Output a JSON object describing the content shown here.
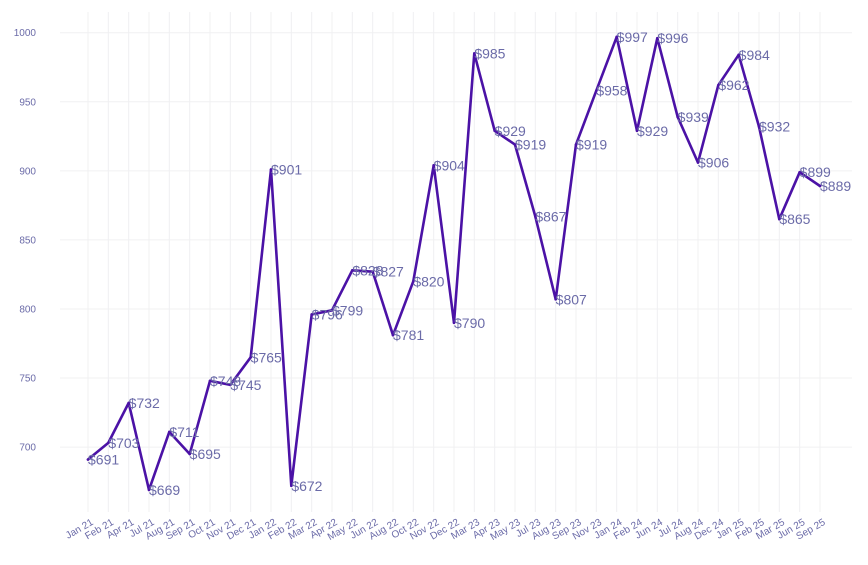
{
  "chart_data": {
    "type": "line",
    "title": "",
    "xlabel": "",
    "ylabel": "",
    "ylim": [
      653,
      1015
    ],
    "yticks": [
      700,
      750,
      800,
      850,
      900,
      950,
      1000
    ],
    "grid": true,
    "line_color": "#4b12a6",
    "label_prefix": "$",
    "categories": [
      "Jan 21",
      "Feb 21",
      "Apr 21",
      "Jul 21",
      "Aug 21",
      "Sep 21",
      "Oct 21",
      "Nov 21",
      "Dec 21",
      "Jan 22",
      "Feb 22",
      "Mar 22",
      "Apr 22",
      "May 22",
      "Jun 22",
      "Aug 22",
      "Oct 22",
      "Nov 22",
      "Dec 22",
      "Mar 23",
      "Apr 23",
      "May 23",
      "Jul 23",
      "Aug 23",
      "Sep 23",
      "Nov 23",
      "Jan 24",
      "Feb 24",
      "Jun 24",
      "Jul 24",
      "Aug 24",
      "Dec 24",
      "Jan 25",
      "Feb 25",
      "Mar 25",
      "Jun 25",
      "Sep 25"
    ],
    "series": [
      {
        "values": [
          691,
          703,
          732,
          669,
          711,
          695,
          748,
          745,
          765,
          901,
          672,
          796,
          799,
          828,
          827,
          781,
          820,
          904,
          790,
          985,
          929,
          919,
          867,
          807,
          919,
          958,
          997,
          929,
          996,
          939,
          906,
          962,
          984,
          932,
          865,
          899,
          889
        ],
        "labels": [
          "$691",
          "$703",
          "$732",
          "$669",
          "$711",
          "$695",
          "$748",
          "$745",
          "$765",
          "$901",
          "$672",
          "$796",
          "$799",
          "$828",
          "$827",
          "$781",
          "$820",
          "$904",
          "$790",
          "$985",
          "$929",
          "$919",
          "$867",
          "$807",
          "$919",
          "$958",
          "$997",
          "$929",
          "$996",
          "$939",
          "$906",
          "$962",
          "$984",
          "$932",
          "$865",
          "$899",
          "$889"
        ]
      }
    ]
  }
}
